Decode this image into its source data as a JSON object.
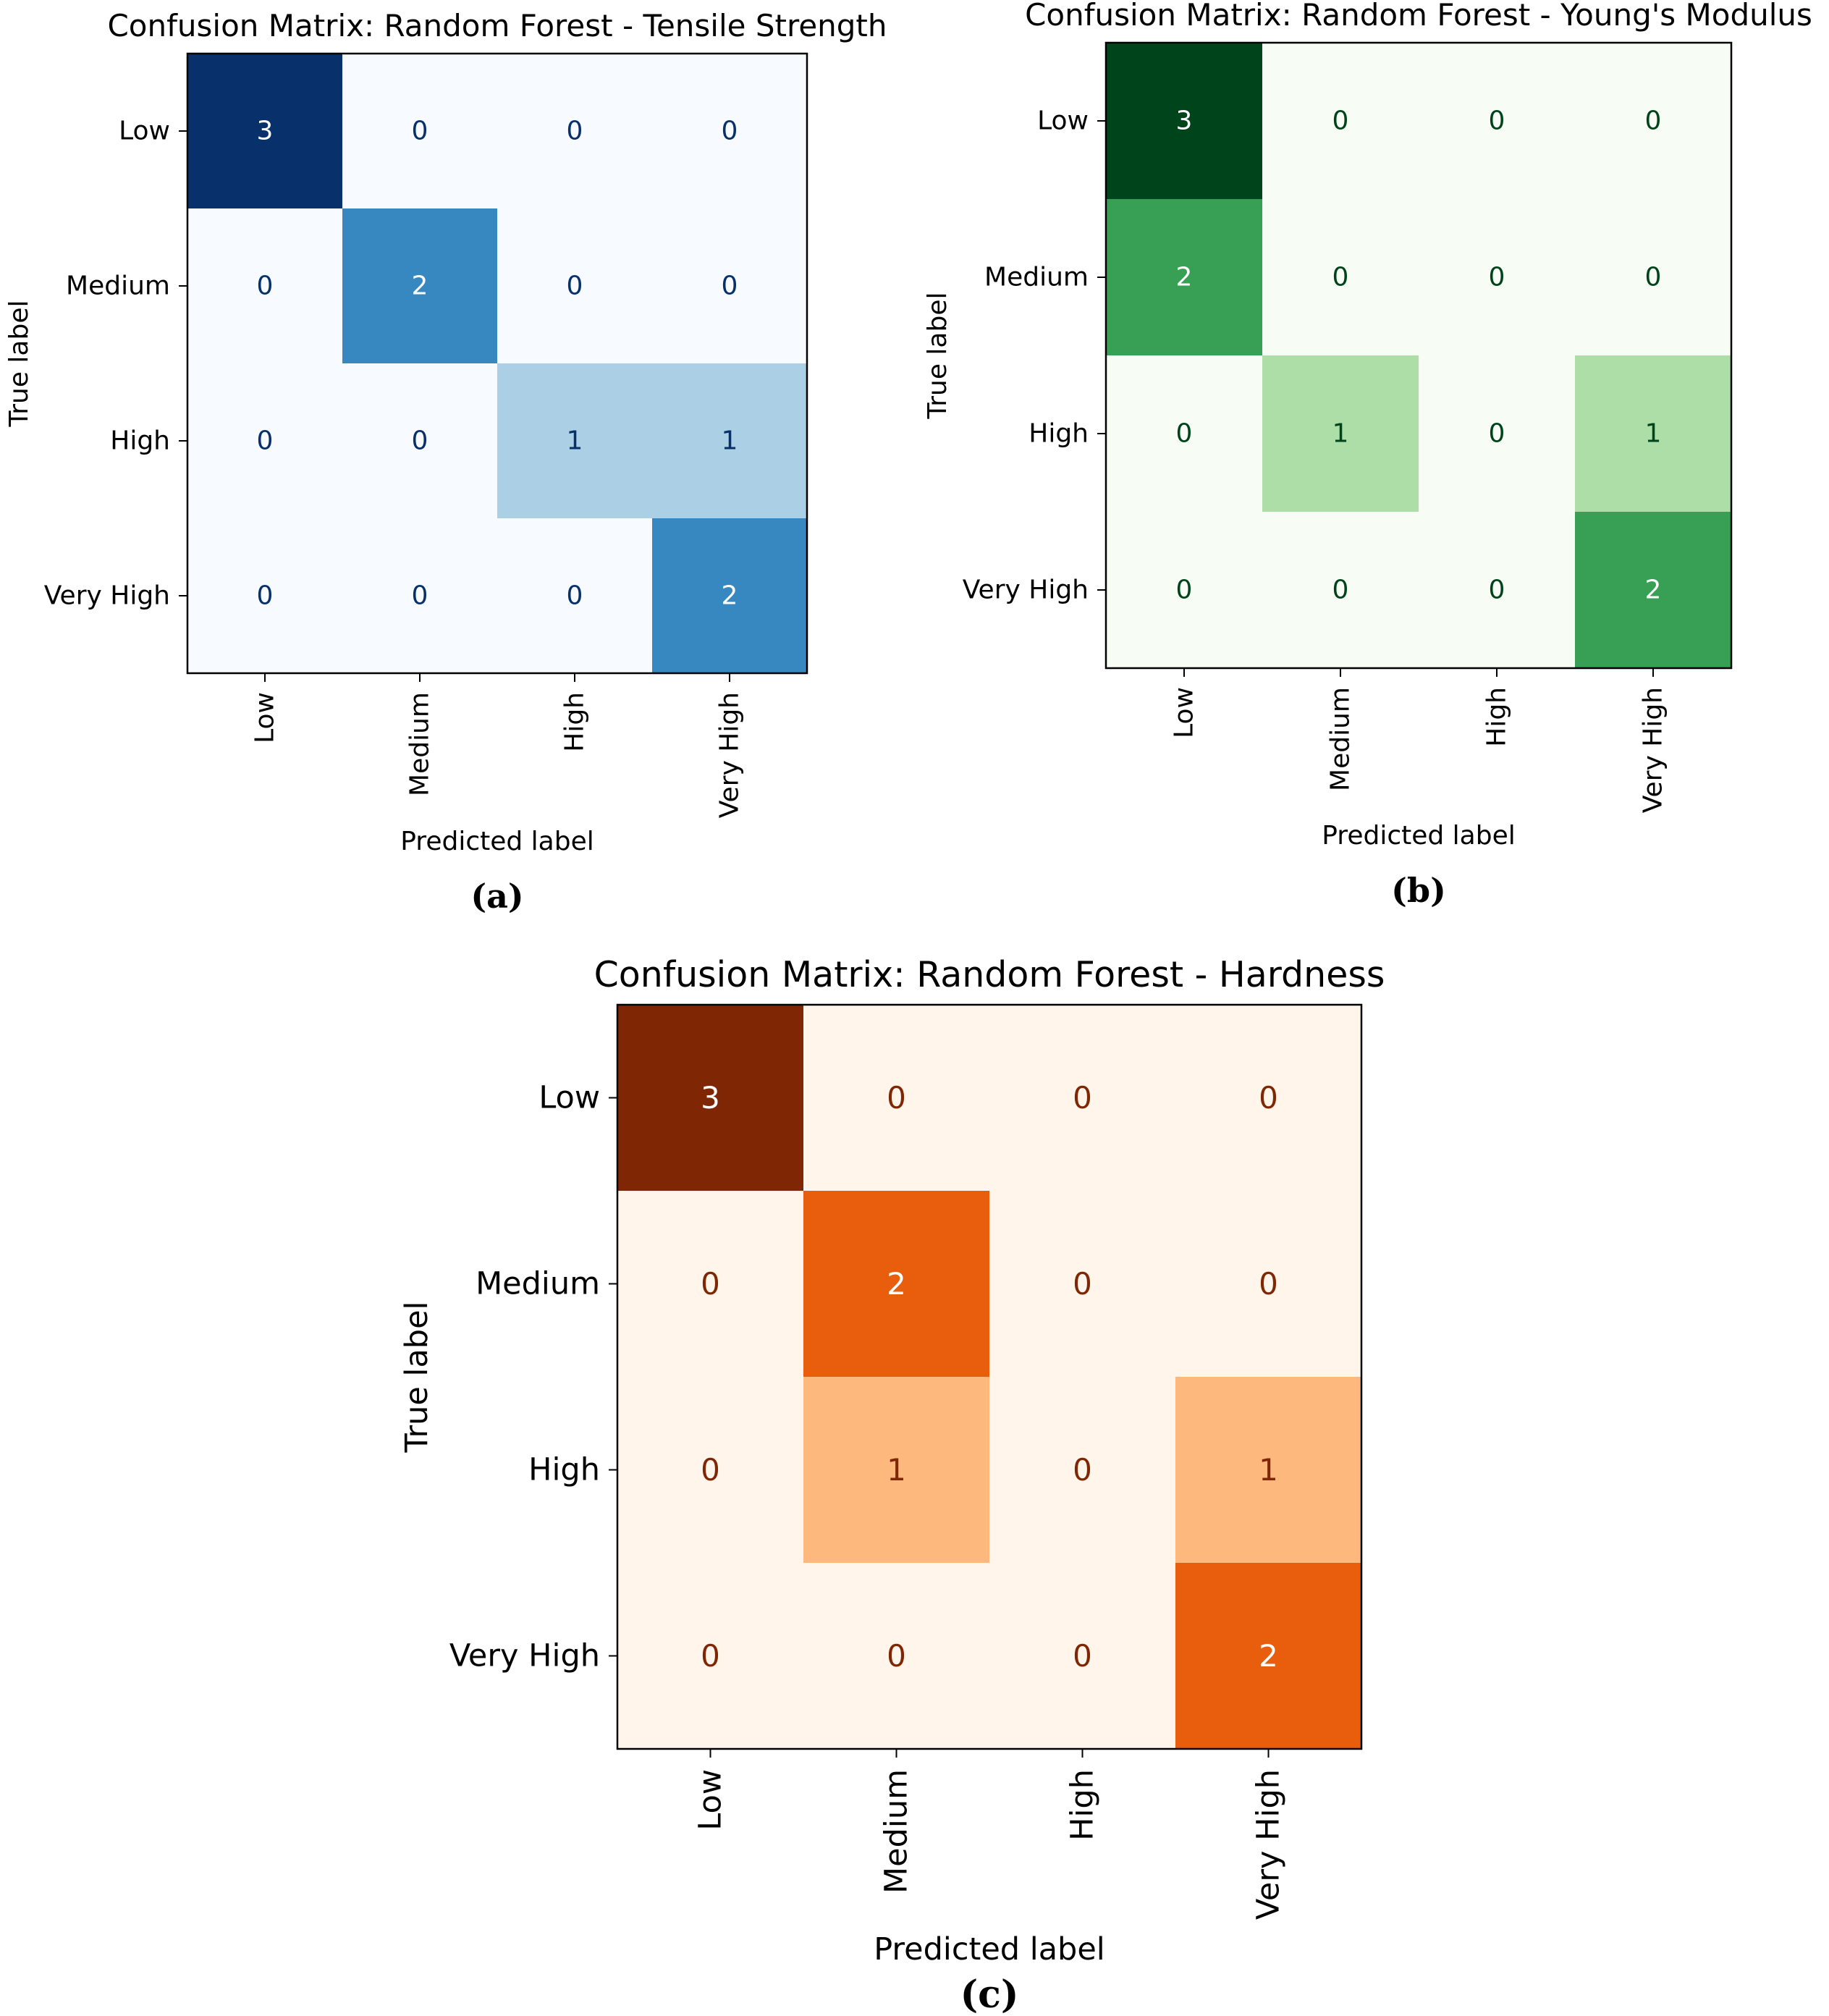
{
  "chart_data": [
    {
      "type": "heatmap",
      "title": "Confusion Matrix: Random Forest - Tensile Strength",
      "xlabel": "Predicted label",
      "ylabel": "True label",
      "row_labels": [
        "Low",
        "Medium",
        "High",
        "Very High"
      ],
      "col_labels": [
        "Low",
        "Medium",
        "High",
        "Very High"
      ],
      "matrix": [
        [
          3,
          0,
          0,
          0
        ],
        [
          0,
          2,
          0,
          0
        ],
        [
          0,
          0,
          1,
          1
        ],
        [
          0,
          0,
          0,
          2
        ]
      ],
      "value_range": [
        0,
        3
      ],
      "colormap": "Blues",
      "color_low": "#f7fbff",
      "color_high": "#08306b",
      "caption": "(a)"
    },
    {
      "type": "heatmap",
      "title": "Confusion Matrix: Random Forest - Young's Modulus",
      "xlabel": "Predicted label",
      "ylabel": "True label",
      "row_labels": [
        "Low",
        "Medium",
        "High",
        "Very High"
      ],
      "col_labels": [
        "Low",
        "Medium",
        "High",
        "Very High"
      ],
      "matrix": [
        [
          3,
          0,
          0,
          0
        ],
        [
          2,
          0,
          0,
          0
        ],
        [
          0,
          1,
          0,
          1
        ],
        [
          0,
          0,
          0,
          2
        ]
      ],
      "value_range": [
        0,
        3
      ],
      "colormap": "Greens",
      "color_low": "#f7fcf5",
      "color_high": "#00441b",
      "caption": "(b)"
    },
    {
      "type": "heatmap",
      "title": "Confusion Matrix: Random Forest - Hardness",
      "xlabel": "Predicted label",
      "ylabel": "True label",
      "row_labels": [
        "Low",
        "Medium",
        "High",
        "Very High"
      ],
      "col_labels": [
        "Low",
        "Medium",
        "High",
        "Very High"
      ],
      "matrix": [
        [
          3,
          0,
          0,
          0
        ],
        [
          0,
          2,
          0,
          0
        ],
        [
          0,
          1,
          0,
          1
        ],
        [
          0,
          0,
          0,
          2
        ]
      ],
      "value_range": [
        0,
        3
      ],
      "colormap": "Oranges",
      "color_low": "#fff5eb",
      "color_high": "#7f2704",
      "caption": "(c)"
    }
  ]
}
